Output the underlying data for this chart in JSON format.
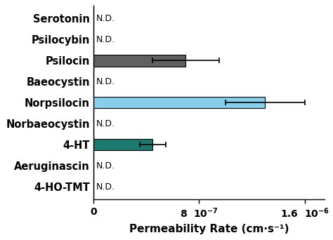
{
  "compounds": [
    "4-HO-TMT",
    "Aeruginascin",
    "4-HT",
    "Norbaeocystin",
    "Norpsilocin",
    "Baeocystin",
    "Psilocin",
    "Psilocybin",
    "Serotonin"
  ],
  "values": [
    null,
    null,
    4.5e-07,
    null,
    1.3e-06,
    null,
    7e-07,
    null,
    null
  ],
  "errors": [
    null,
    null,
    1e-07,
    null,
    3e-07,
    null,
    2.5e-07,
    null,
    null
  ],
  "colors": [
    null,
    null,
    "#1a7a6e",
    null,
    "#87CEEB",
    null,
    "#606060",
    null,
    null
  ],
  "nd_labels": [
    true,
    true,
    false,
    true,
    false,
    true,
    false,
    true,
    true
  ],
  "xlim": [
    0,
    1.75e-06
  ],
  "xticks": [
    0,
    8e-07,
    1.6e-06
  ],
  "xlabel": "Permeability Rate (cm·s⁻¹)",
  "background_color": "#ffffff",
  "bar_height": 0.55,
  "nd_fontsize": 9,
  "xlabel_fontsize": 11,
  "tick_fontsize": 10,
  "ytick_fontsize": 10.5
}
